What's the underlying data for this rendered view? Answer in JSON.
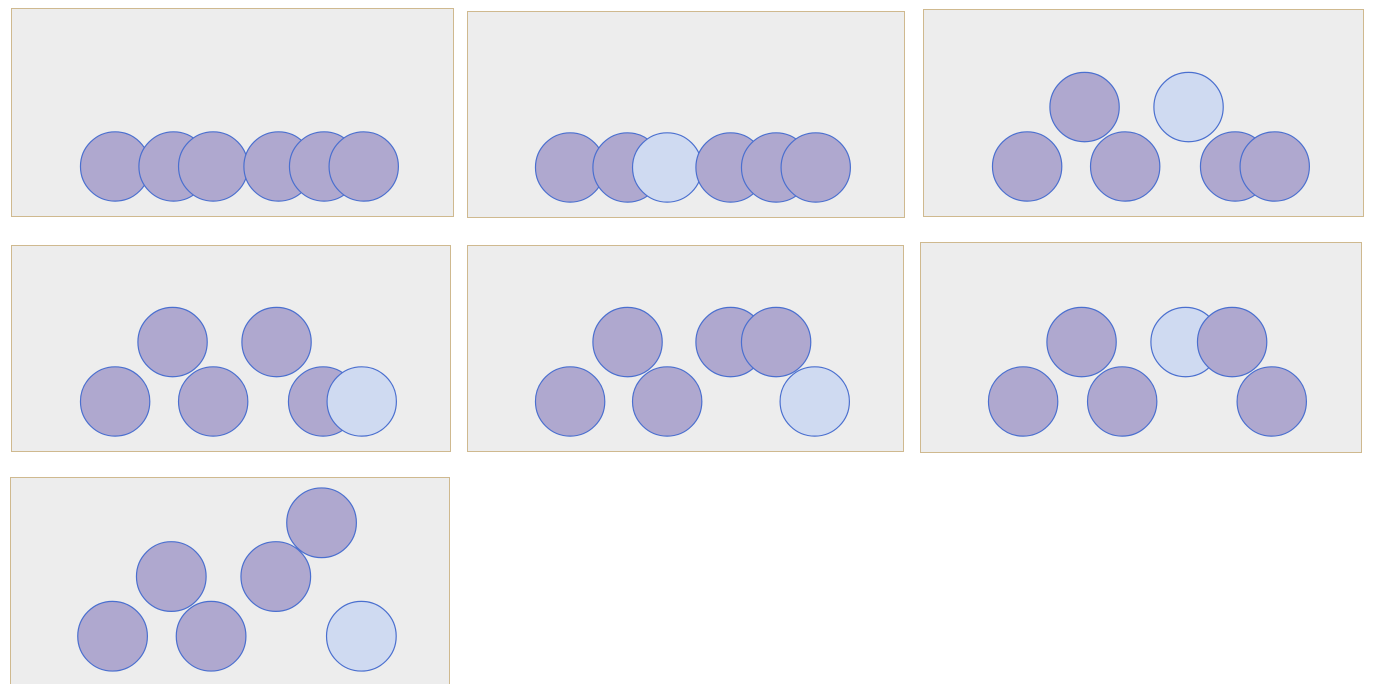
{
  "colors": {
    "background": "#ffffff",
    "panel_fill": "#ededed",
    "panel_border": "#cfb98f",
    "circle_dark_fill": "#afa8cf",
    "circle_light_fill": "#cfdaf1",
    "circle_stroke": "#4a6fcf"
  },
  "panels": [
    {
      "name": "panel-1",
      "circles": [
        "dark",
        "dark",
        "dark",
        "dark",
        "dark",
        "dark"
      ]
    },
    {
      "name": "panel-2",
      "circles": [
        "dark",
        "dark",
        "light",
        "dark",
        "dark",
        "dark"
      ]
    },
    {
      "name": "panel-3",
      "circles": [
        "dark",
        "dark",
        "dark",
        "light",
        "dark",
        "dark"
      ]
    },
    {
      "name": "panel-4",
      "circles": [
        "dark",
        "dark",
        "dark",
        "dark",
        "dark",
        "light"
      ]
    },
    {
      "name": "panel-5",
      "circles": [
        "dark",
        "dark",
        "dark",
        "dark",
        "dark",
        "light"
      ]
    },
    {
      "name": "panel-6",
      "circles": [
        "dark",
        "dark",
        "light",
        "dark",
        "dark",
        "dark"
      ]
    },
    {
      "name": "panel-7",
      "circles": [
        "dark",
        "dark",
        "dark",
        "dark",
        "dark",
        "light"
      ]
    }
  ]
}
